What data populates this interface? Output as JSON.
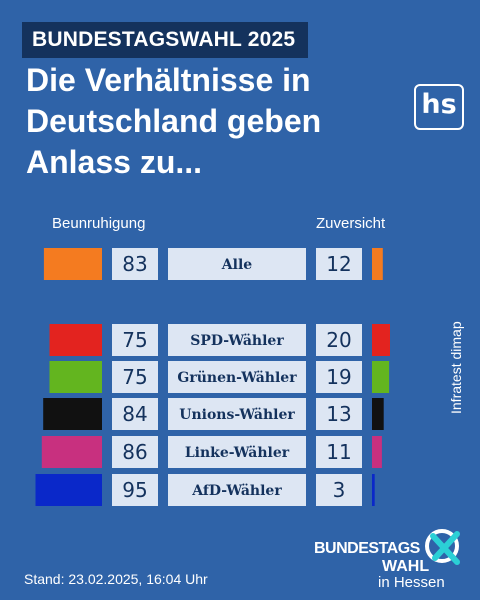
{
  "kicker": "BUNDESTAGSWAHL 2025",
  "headline": [
    "Die Verhältnisse in",
    "Deutschland geben",
    "Anlass zu..."
  ],
  "logo": "hs",
  "source": "Infratest dimap",
  "stand": "Stand: 23.02.2025, 16:04 Uhr",
  "brand": {
    "line1": "BUNDESTAGS",
    "line2": "WAHL",
    "line3": "in Hessen"
  },
  "colors": {
    "background": "#2f63a8",
    "kicker_bg": "#14325d",
    "label_box": "#dde6f3",
    "text_dark": "#14325d"
  },
  "chart_data": {
    "type": "bar",
    "left_label": "Beunruhigung",
    "right_label": "Zuversicht",
    "rows": [
      {
        "label": "Alle",
        "beunruhigung": 83,
        "zuversicht": 12,
        "color": "#f47b20"
      },
      {
        "label": "SPD-Wähler",
        "beunruhigung": 75,
        "zuversicht": 20,
        "color": "#e3231f"
      },
      {
        "label": "Grünen-Wähler",
        "beunruhigung": 75,
        "zuversicht": 19,
        "color": "#63b51f"
      },
      {
        "label": "Unions-Wähler",
        "beunruhigung": 84,
        "zuversicht": 13,
        "color": "#111111"
      },
      {
        "label": "Linke-Wähler",
        "beunruhigung": 86,
        "zuversicht": 11,
        "color": "#c8307f"
      },
      {
        "label": "AfD-Wähler",
        "beunruhigung": 95,
        "zuversicht": 3,
        "color": "#0a28c9"
      }
    ]
  }
}
